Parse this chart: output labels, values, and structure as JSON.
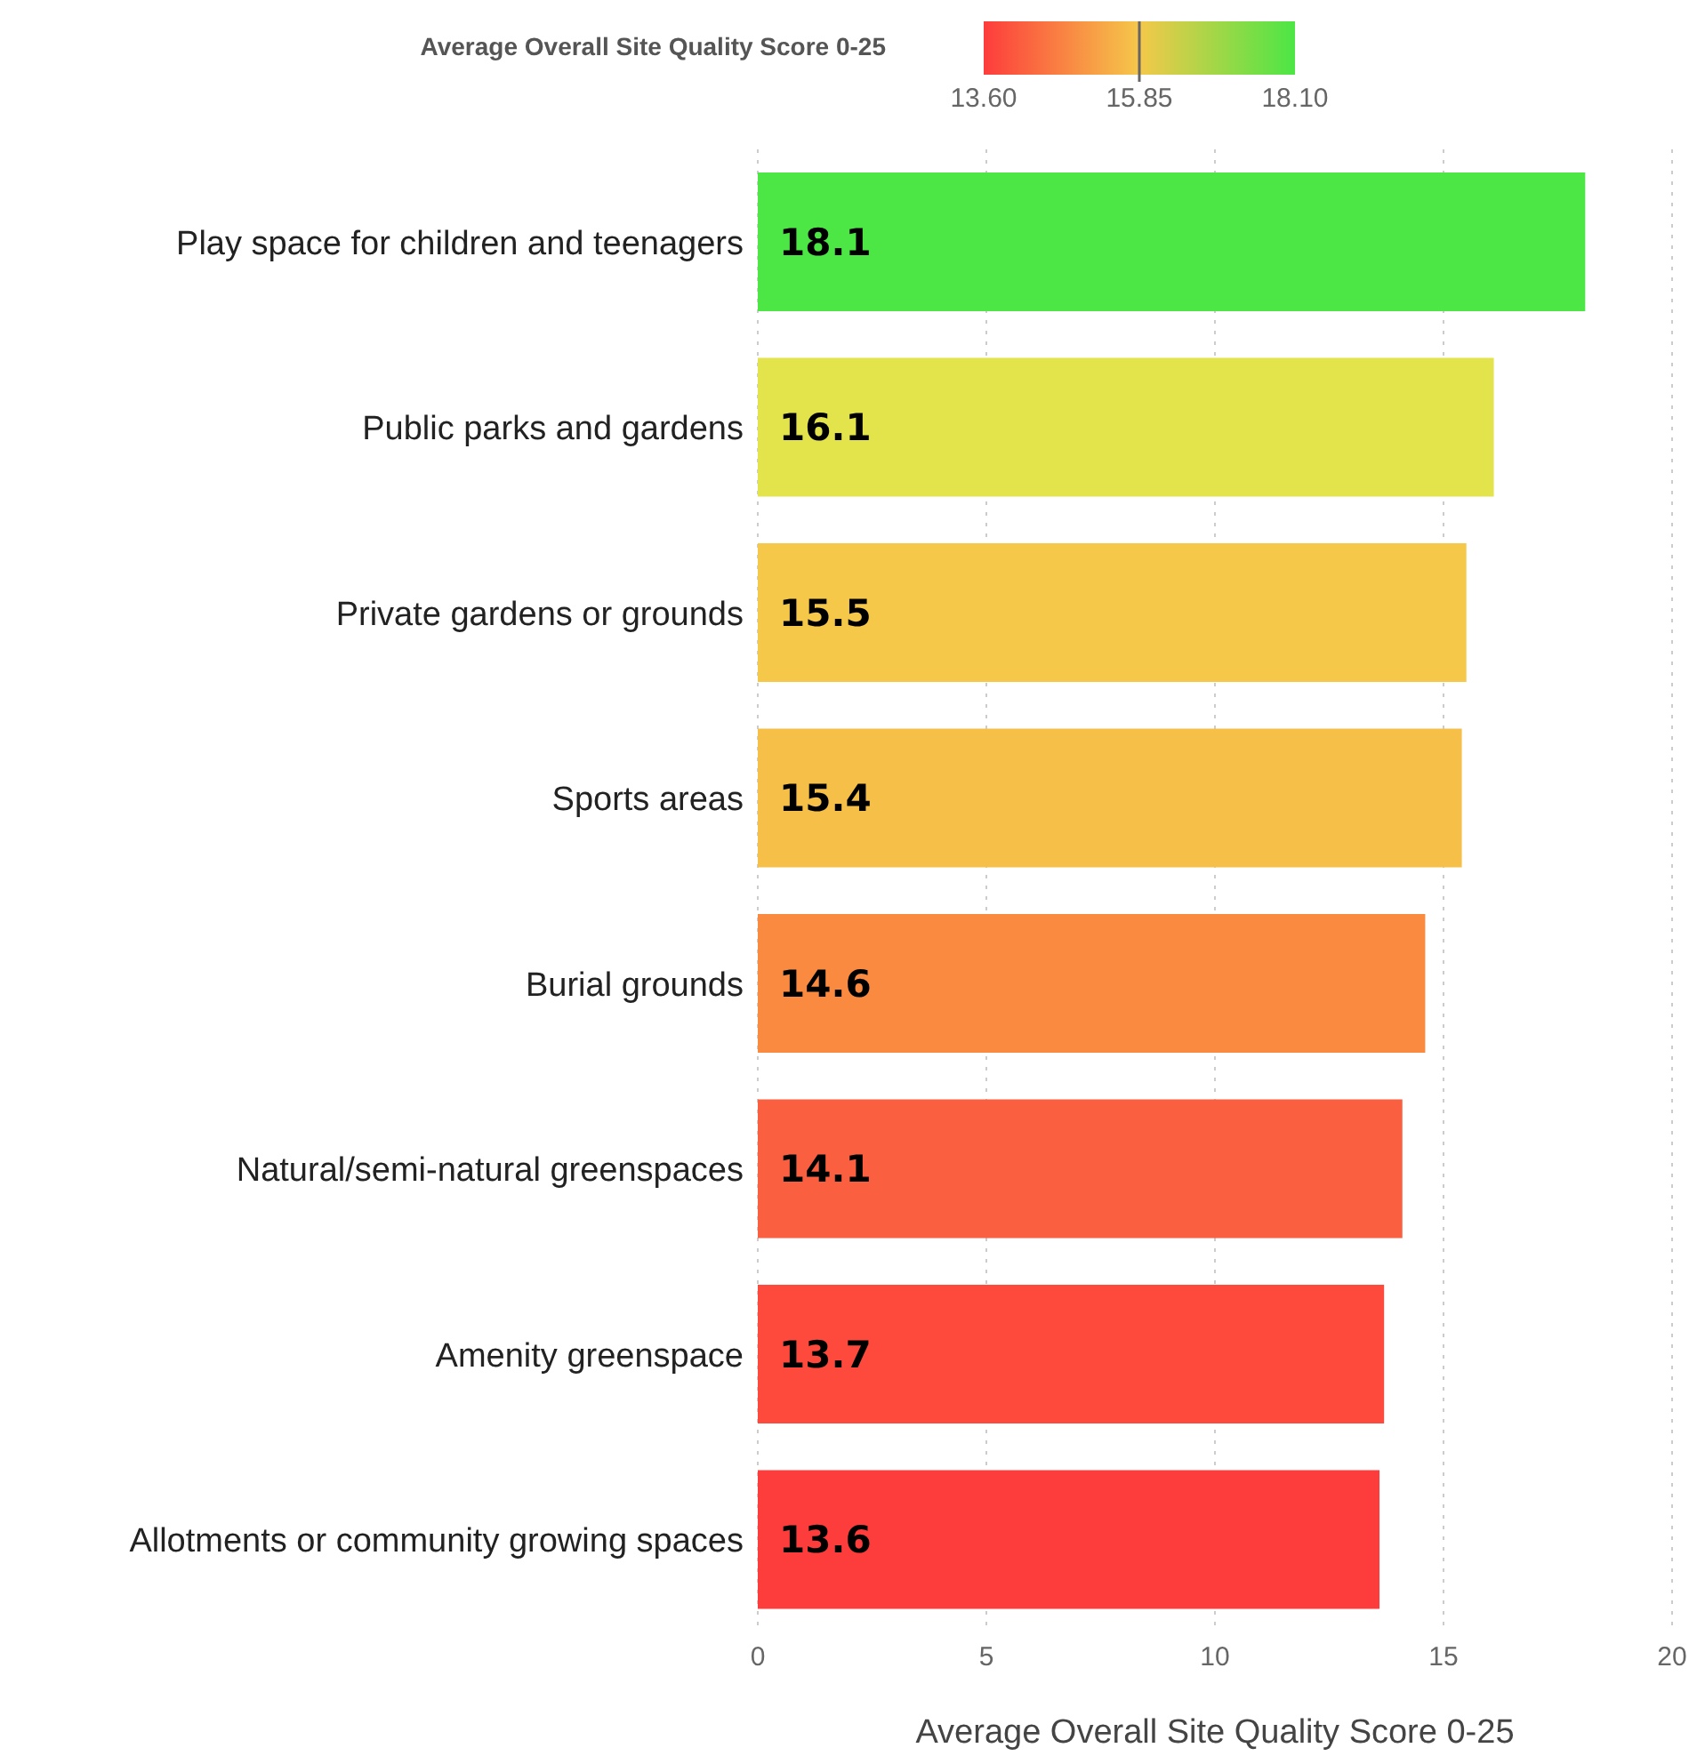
{
  "chart_data": {
    "type": "bar",
    "orientation": "horizontal",
    "xlabel": "Average Overall Site Quality Score 0-25",
    "clabel": "Average Overall Site Quality Score 0-25",
    "clim": [
      13.6,
      18.1
    ],
    "cticks": [
      {
        "value": 13.6,
        "label": "13.60"
      },
      {
        "value": 15.85,
        "label": "15.85"
      },
      {
        "value": 18.1,
        "label": "18.10"
      }
    ],
    "categories": [
      "Play space for children and teenagers",
      "Public parks and gardens",
      "Private gardens or grounds",
      "Sports areas",
      "Burial grounds",
      "Natural/semi-natural greenspaces",
      "Amenity greenspace",
      "Allotments or community growing spaces"
    ],
    "values": [
      18.1,
      16.1,
      15.5,
      15.4,
      14.6,
      14.1,
      13.7,
      13.6
    ],
    "colors": [
      "#4ce645",
      "#e3e34c",
      "#f5c84a",
      "#f5bf48",
      "#f98a40",
      "#fa5f3f",
      "#fd4a3c",
      "#fd3c3c"
    ],
    "xlim": [
      0,
      20
    ],
    "xticks": [
      0,
      5,
      10,
      15,
      20
    ],
    "grid": "x",
    "data_labels": true
  }
}
